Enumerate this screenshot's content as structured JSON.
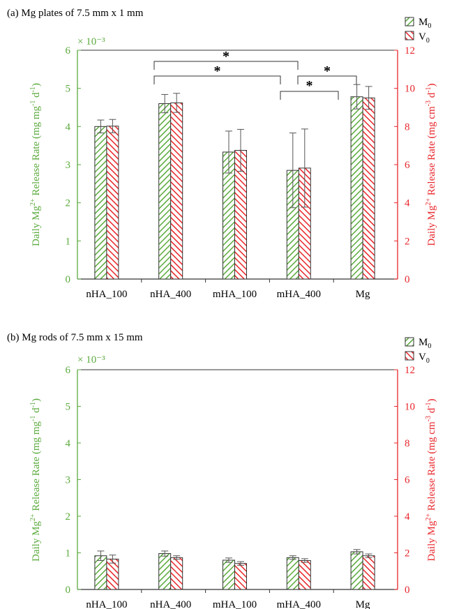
{
  "colors": {
    "green": "#5aaa3c",
    "red": "#e8252a",
    "axis": "#333333",
    "err": "#555555"
  },
  "legend": [
    {
      "label": "M",
      "sub": "0",
      "color": "#5aaa3c"
    },
    {
      "label": "V",
      "sub": "0",
      "color": "#e8252a"
    }
  ],
  "chart_data": [
    {
      "type": "bar",
      "title": "(a) Mg plates of  7.5 mm x 1 mm",
      "categories": [
        "nHA_100",
        "nHA_400",
        "mHA_100",
        "mHA_400",
        "Mg"
      ],
      "left_axis": {
        "ylim": [
          0,
          6
        ],
        "ticks": [
          0,
          1,
          2,
          3,
          4,
          5,
          6
        ],
        "multiplier": "× 10⁻³",
        "label_pre": "Daily Mg",
        "label_sup": "2+",
        "label_mid": " Release Rate (mg mg",
        "label_sup2": "-1",
        "label_post": " d",
        "label_sup3": "-1",
        "label_end": ")"
      },
      "right_axis": {
        "ylim": [
          0,
          12
        ],
        "ticks": [
          0,
          2,
          4,
          6,
          8,
          10,
          12
        ],
        "label_pre": "Daily Mg",
        "label_sup": "2+",
        "label_mid": " Release Rate (mg cm",
        "label_sup2": "-3",
        "label_post": " d",
        "label_sup3": "-1",
        "label_end": ")"
      },
      "series": [
        {
          "name": "M0",
          "axis": "left",
          "values": [
            4.0,
            4.6,
            3.33,
            2.85,
            4.78
          ],
          "errors": [
            0.17,
            0.24,
            0.55,
            0.98,
            0.32
          ]
        },
        {
          "name": "V0",
          "axis": "right",
          "values": [
            8.02,
            9.24,
            6.75,
            5.82,
            9.5
          ],
          "errors": [
            0.35,
            0.5,
            1.1,
            2.05,
            0.6
          ]
        }
      ],
      "significance": [
        {
          "from": 1,
          "to": 3,
          "label": "*"
        },
        {
          "from": 1,
          "to": 3,
          "label": "*"
        },
        {
          "from": 3,
          "to": 4,
          "label": "*"
        },
        {
          "from": 3,
          "to": 4,
          "label": "*"
        }
      ]
    },
    {
      "type": "bar",
      "title": "(b) Mg rods of  7.5 mm x 15 mm",
      "categories": [
        "nHA_100",
        "nHA_400",
        "mHA_100",
        "mHA_400",
        "Mg"
      ],
      "left_axis": {
        "ylim": [
          0,
          6
        ],
        "ticks": [
          0,
          1,
          2,
          3,
          4,
          5,
          6
        ],
        "multiplier": "× 10⁻³",
        "label_pre": "Daily Mg",
        "label_sup": "2+",
        "label_mid": " Release Rate (mg mg",
        "label_sup2": "-1",
        "label_post": " d",
        "label_sup3": "-1",
        "label_end": ")"
      },
      "right_axis": {
        "ylim": [
          0,
          12
        ],
        "ticks": [
          0,
          2,
          4,
          6,
          8,
          10,
          12
        ],
        "label_pre": "Daily Mg",
        "label_sup": "2+",
        "label_mid": " Release Rate (mg cm",
        "label_sup2": "-3",
        "label_post": " d",
        "label_sup3": "-1",
        "label_end": ")"
      },
      "series": [
        {
          "name": "M0",
          "axis": "left",
          "values": [
            0.92,
            0.98,
            0.8,
            0.87,
            1.03
          ],
          "errors": [
            0.13,
            0.07,
            0.06,
            0.05,
            0.06
          ]
        },
        {
          "name": "V0",
          "axis": "right",
          "values": [
            1.66,
            1.74,
            1.42,
            1.58,
            1.84
          ],
          "errors": [
            0.22,
            0.1,
            0.1,
            0.1,
            0.1
          ]
        }
      ],
      "significance": []
    }
  ]
}
